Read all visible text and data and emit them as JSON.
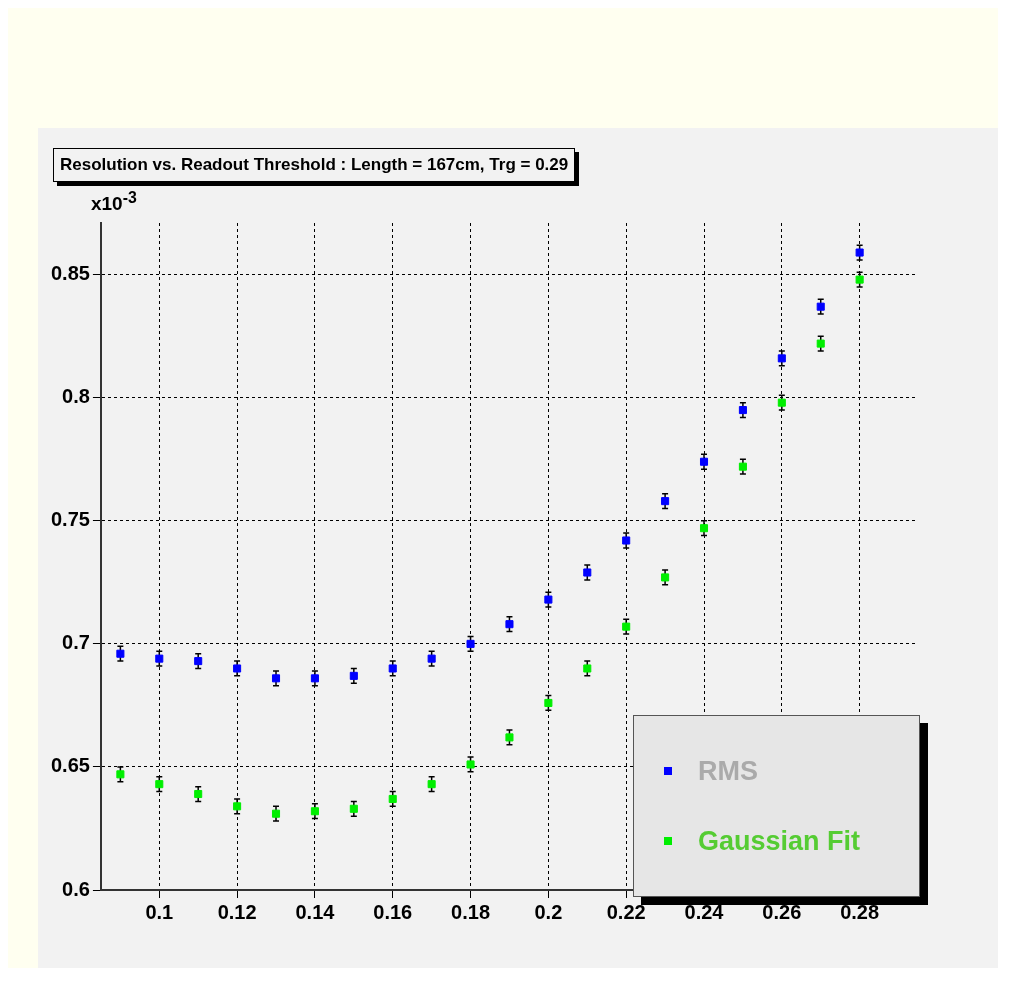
{
  "chart_data": {
    "type": "scatter",
    "title": "Resolution vs. Readout Threshold : Length = 167cm, Trg = 0.29",
    "annotations": [
      "x10$^{-3}$"
    ],
    "x": [
      0.09,
      0.1,
      0.11,
      0.12,
      0.13,
      0.14,
      0.15,
      0.16,
      0.17,
      0.18,
      0.19,
      0.2,
      0.21,
      0.22,
      0.23,
      0.24,
      0.25,
      0.26,
      0.27,
      0.28
    ],
    "series": [
      {
        "name": "RMS",
        "color": "#0000ff",
        "values": [
          0.696,
          0.694,
          0.693,
          0.69,
          0.686,
          0.686,
          0.687,
          0.69,
          0.694,
          0.7,
          0.708,
          0.718,
          0.729,
          0.742,
          0.758,
          0.774,
          0.795,
          0.816,
          0.837,
          0.859
        ],
        "errors": [
          0.003,
          0.003,
          0.003,
          0.003,
          0.003,
          0.003,
          0.003,
          0.003,
          0.003,
          0.003,
          0.003,
          0.003,
          0.003,
          0.003,
          0.003,
          0.003,
          0.003,
          0.003,
          0.003,
          0.003
        ]
      },
      {
        "name": "Gaussian Fit",
        "color": "#00ee00",
        "values": [
          0.647,
          0.643,
          0.639,
          0.634,
          0.631,
          0.632,
          0.633,
          0.637,
          0.643,
          0.651,
          0.662,
          0.676,
          0.69,
          0.707,
          0.727,
          0.747,
          0.772,
          0.798,
          0.822,
          0.848
        ],
        "errors": [
          0.003,
          0.003,
          0.003,
          0.003,
          0.003,
          0.003,
          0.003,
          0.003,
          0.003,
          0.003,
          0.003,
          0.003,
          0.003,
          0.003,
          0.003,
          0.003,
          0.003,
          0.003,
          0.003,
          0.003
        ]
      }
    ],
    "xlim": [
      0.085,
      0.295
    ],
    "xticks": [
      0.1,
      0.12,
      0.14,
      0.16,
      0.18,
      0.2,
      0.22,
      0.24,
      0.26,
      0.28
    ],
    "ylim": [
      0.6,
      0.871
    ],
    "yticks": [
      0.6,
      0.65,
      0.7,
      0.75,
      0.8,
      0.85
    ],
    "grid": true,
    "legend": "bottom right",
    "marker": "square"
  }
}
